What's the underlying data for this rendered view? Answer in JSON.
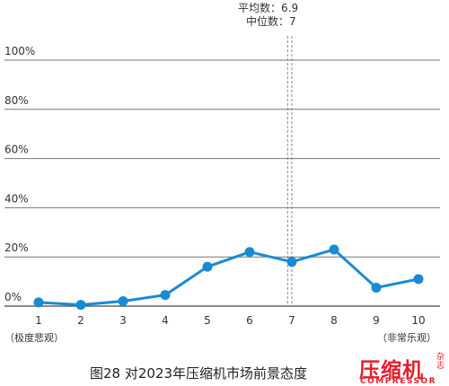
{
  "chart_data": {
    "type": "line",
    "categories": [
      "1",
      "2",
      "3",
      "4",
      "5",
      "6",
      "7",
      "8",
      "9",
      "10"
    ],
    "values": [
      1.5,
      0.5,
      2,
      4.5,
      16,
      22,
      18,
      23,
      7.5,
      11
    ],
    "ylim": [
      0,
      100
    ],
    "yticks": [
      "0%",
      "20%",
      "40%",
      "60%",
      "80%",
      "100%"
    ],
    "grid": true,
    "reference_lines": [
      {
        "x": 6.9,
        "label": "平均数：6.9"
      },
      {
        "x": 7,
        "label": "中位数：7"
      }
    ],
    "x_end_labels": {
      "left": "（极度悲观）",
      "right": "（非常乐观）"
    },
    "title": "图28 对2023年压缩机市场前景态度",
    "line_color": "#1a8ad4"
  },
  "logo": {
    "main_text": "压缩机",
    "side_text": "杂志",
    "sub_text": "COMPRESSOR",
    "registered_mark": "®"
  }
}
